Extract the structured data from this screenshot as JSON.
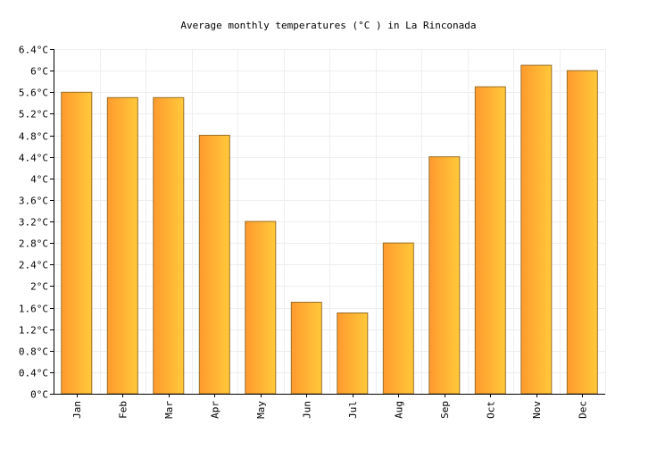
{
  "chart_data": {
    "type": "bar",
    "title": "Average monthly temperatures (°C ) in La Rinconada",
    "categories": [
      "Jan",
      "Feb",
      "Mar",
      "Apr",
      "May",
      "Jun",
      "Jul",
      "Aug",
      "Sep",
      "Oct",
      "Nov",
      "Dec"
    ],
    "values": [
      5.6,
      5.5,
      5.5,
      4.8,
      3.2,
      1.7,
      1.5,
      2.8,
      4.4,
      5.7,
      6.1,
      6.0
    ],
    "ylim": [
      0,
      6.4
    ],
    "yticks": [
      "0°C",
      "0.4°C",
      "0.8°C",
      "1.2°C",
      "1.6°C",
      "2°C",
      "2.4°C",
      "2.8°C",
      "3.2°C",
      "3.6°C",
      "4°C",
      "4.4°C",
      "4.8°C",
      "5.2°C",
      "5.6°C",
      "6°C",
      "6.4°C"
    ],
    "ytick_values": [
      0,
      0.4,
      0.8,
      1.2,
      1.6,
      2,
      2.4,
      2.8,
      3.2,
      3.6,
      4,
      4.4,
      4.8,
      5.2,
      5.6,
      6,
      6.4
    ],
    "xlabel": "",
    "ylabel": "",
    "grid": true,
    "legend": "none",
    "colors": {
      "bar_light": "#ffc93a",
      "bar_dark": "#ff9a2e",
      "bar_stroke": "#9a6e2a",
      "grid": "#eeeeee",
      "axis": "#000000"
    }
  }
}
